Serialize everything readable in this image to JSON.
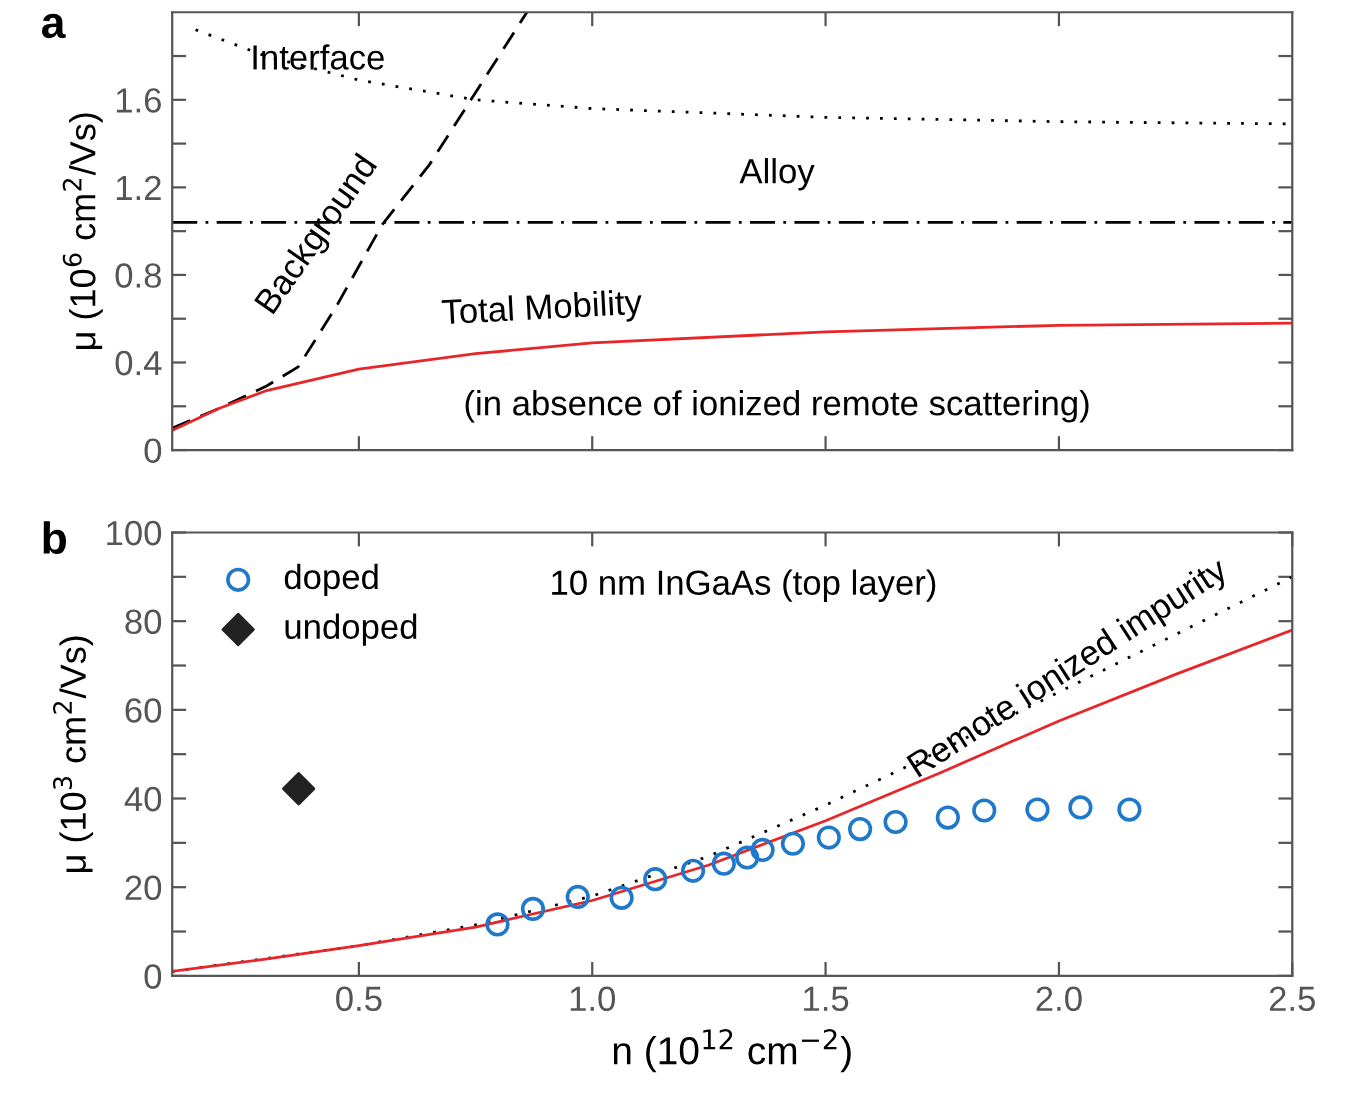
{
  "chart_data": [
    {
      "type": "line",
      "title": "a",
      "ylabel": "μ (10$^{6}$ cm$^{2}$/Vs)",
      "xlim": [
        0.1,
        2.5
      ],
      "xticks": [
        {
          "value": 0.5,
          "label": null
        },
        {
          "value": 1.0,
          "label": null
        },
        {
          "value": 1.5,
          "label": null
        },
        {
          "value": 2.0,
          "label": null
        }
      ],
      "ylim": [
        0,
        2.0
      ],
      "yticks": [
        0,
        {
          "value": 0.2,
          "label": null
        },
        0.4,
        {
          "value": 0.6,
          "label": null
        },
        0.8,
        {
          "value": 1.0,
          "label": null
        },
        1.2,
        {
          "value": 1.4,
          "label": null
        },
        1.6,
        {
          "value": 1.8,
          "label": null
        }
      ],
      "tick_labels": "y",
      "grid": false,
      "legend": false,
      "series": [
        {
          "line_style": "dotted",
          "color": "#000000",
          "x": [
            0.15,
            0.3,
            0.5,
            0.75,
            1.0,
            1.5,
            2.0,
            2.5
          ],
          "values": [
            1.92,
            1.8,
            1.69,
            1.6,
            1.56,
            1.52,
            1.5,
            1.49
          ]
        },
        {
          "line_style": "dashed",
          "color": "#000000",
          "x": [
            0.1,
            0.2,
            0.3,
            0.37,
            0.45,
            0.55,
            0.65,
            0.74,
            0.86
          ],
          "values": [
            0.1,
            0.19,
            0.29,
            0.38,
            0.65,
            1.03,
            1.3,
            1.6,
            2.0
          ]
        },
        {
          "line_style": "dashdot",
          "color": "#000000",
          "x": [
            0.1,
            2.5
          ],
          "values": [
            1.04,
            1.04
          ]
        },
        {
          "line_style": "solid",
          "color": "#e8262a",
          "x": [
            0.1,
            0.2,
            0.3,
            0.5,
            0.75,
            1.0,
            1.5,
            2.0,
            2.5
          ],
          "values": [
            0.09,
            0.19,
            0.27,
            0.37,
            0.44,
            0.49,
            0.54,
            0.57,
            0.58
          ]
        }
      ],
      "annotations": [
        "Interface",
        "Background",
        "Alloy",
        "Total Mobility",
        "(in absence of ionized remote scattering)"
      ]
    },
    {
      "type": "line",
      "title": "b",
      "xlabel": "n (10$^{12}$ cm$^{−2}$)",
      "ylabel": "μ (10$^{3}$ cm$^{2}$/Vs)",
      "xlim": [
        0.1,
        2.5
      ],
      "xticks": [
        0.5,
        {
          "value": 1.0,
          "label": "1.0"
        },
        1.5,
        {
          "value": 2.0,
          "label": "2.0"
        },
        2.5
      ],
      "ylim": [
        0,
        100
      ],
      "yticks": [
        0,
        {
          "value": 10,
          "label": null
        },
        20,
        {
          "value": 30,
          "label": null
        },
        40,
        {
          "value": 50,
          "label": null
        },
        60,
        {
          "value": 70,
          "label": null
        },
        80,
        {
          "value": 90,
          "label": null
        },
        100
      ],
      "grid": false,
      "legend": "top left",
      "series": [
        {
          "line_style": "dotted",
          "color": "#000000",
          "x": [
            0.1,
            0.5,
            0.75,
            1.0,
            1.25,
            1.5,
            1.75,
            2.0,
            2.25,
            2.5
          ],
          "values": [
            1,
            6.8,
            11.5,
            18,
            27,
            38.5,
            51,
            64,
            77,
            90
          ]
        },
        {
          "line_style": "solid",
          "color": "#e8262a",
          "x": [
            0.1,
            0.3,
            0.5,
            0.75,
            1.0,
            1.25,
            1.5,
            1.75,
            2.0,
            2.25,
            2.5
          ],
          "values": [
            1,
            3.8,
            6.8,
            11,
            17,
            25,
            35,
            46,
            57.5,
            68,
            78
          ]
        },
        {
          "type": "scatter",
          "name": "doped",
          "marker": "circle",
          "color": "#1f78c8",
          "x": [
            0.797,
            0.873,
            0.969,
            1.063,
            1.135,
            1.216,
            1.282,
            1.332,
            1.365,
            1.43,
            1.507,
            1.574,
            1.65,
            1.762,
            1.84,
            1.954,
            2.046,
            2.151
          ],
          "values": [
            11.6,
            15.1,
            17.8,
            17.6,
            21.8,
            23.7,
            25.3,
            26.7,
            28.4,
            29.8,
            31.2,
            33.1,
            34.7,
            35.7,
            37.3,
            37.5,
            38.0,
            37.5
          ]
        },
        {
          "type": "scatter",
          "name": "undoped",
          "marker": "diamond",
          "color": "#222222",
          "x": [
            0.371
          ],
          "values": [
            42.2
          ]
        }
      ],
      "annotations": [
        "10 nm InGaAs (top layer)",
        "Remote ionized impurity"
      ]
    }
  ]
}
